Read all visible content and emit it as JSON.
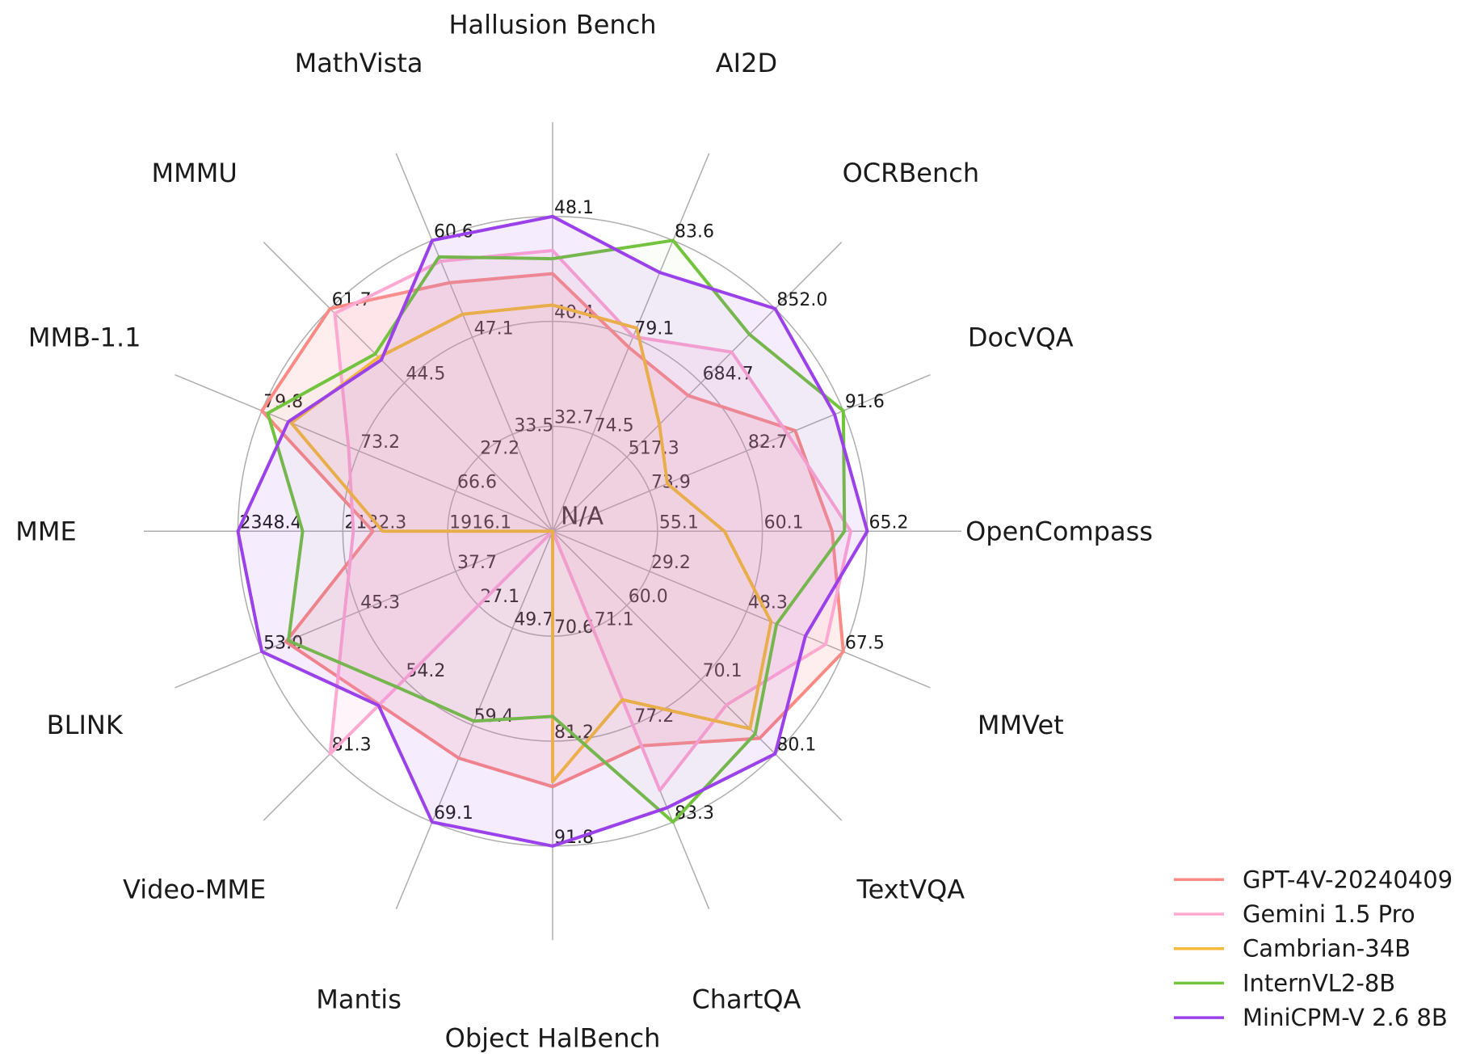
{
  "chart_data": {
    "type": "radar",
    "center_label": "N/A",
    "grid_color": "#ADADAD",
    "text_color": "#1a1a1a",
    "rings": 3,
    "axes": [
      {
        "name": "Hallusion Bench",
        "min": 25.0,
        "max": 48.1,
        "ticks": [
          "32.7",
          "40.4",
          "48.1"
        ]
      },
      {
        "name": "AI2D",
        "min": 70.0,
        "max": 83.6,
        "ticks": [
          "74.5",
          "79.1",
          "83.6"
        ]
      },
      {
        "name": "OCRBench",
        "min": 350.0,
        "max": 852.0,
        "ticks": [
          "517.3",
          "684.7",
          "852.0"
        ]
      },
      {
        "name": "DocVQA",
        "min": 65.0,
        "max": 91.6,
        "ticks": [
          "73.9",
          "82.7",
          "91.6"
        ]
      },
      {
        "name": "OpenCompass",
        "min": 50.0,
        "max": 65.2,
        "ticks": [
          "55.1",
          "60.1",
          "65.2"
        ]
      },
      {
        "name": "MMVet",
        "min": 10.0,
        "max": 67.5,
        "ticks": [
          "29.2",
          "48.3",
          "67.5"
        ]
      },
      {
        "name": "TextVQA",
        "min": 50.0,
        "max": 80.1,
        "ticks": [
          "60.0",
          "70.1",
          "80.1"
        ]
      },
      {
        "name": "ChartQA",
        "min": 65.0,
        "max": 83.3,
        "ticks": [
          "71.1",
          "77.2",
          "83.3"
        ]
      },
      {
        "name": "Object HalBench",
        "min": 60.0,
        "max": 91.8,
        "ticks": [
          "70.6",
          "81.2",
          "91.8"
        ]
      },
      {
        "name": "Mantis",
        "min": 40.0,
        "max": 69.1,
        "ticks": [
          "49.7",
          "59.4",
          "69.1"
        ]
      },
      {
        "name": "Video-MME",
        "min": 0.0,
        "max": 81.3,
        "ticks": [
          "27.1",
          "54.2",
          "81.3"
        ]
      },
      {
        "name": "BLINK",
        "min": 30.0,
        "max": 53.0,
        "ticks": [
          "37.7",
          "45.3",
          "53.0"
        ]
      },
      {
        "name": "MME",
        "min": 1700.0,
        "max": 2348.4,
        "ticks": [
          "1916.1",
          "2132.3",
          "2348.4"
        ]
      },
      {
        "name": "MMB-1.1",
        "min": 60.0,
        "max": 79.8,
        "ticks": [
          "66.6",
          "73.2",
          "79.8"
        ]
      },
      {
        "name": "MMMU",
        "min": 10.0,
        "max": 61.7,
        "ticks": [
          "27.2",
          "44.5",
          "61.7"
        ]
      },
      {
        "name": "MathVista",
        "min": 20.0,
        "max": 60.6,
        "ticks": [
          "33.5",
          "47.1",
          "60.6"
        ]
      }
    ],
    "series": [
      {
        "name": "GPT-4V-20240409",
        "color": "#FA8A84",
        "fill_alpha": 0.14,
        "values": [
          43.9,
          78.6,
          656.0,
          87.2,
          63.5,
          67.5,
          78.0,
          78.5,
          85.8,
          62.7,
          63.3,
          51.1,
          2070.2,
          79.8,
          61.7,
          54.7
        ]
      },
      {
        "name": "Gemini 1.5 Pro",
        "color": "#FFA8D2",
        "fill_alpha": 0.13,
        "values": [
          45.6,
          79.1,
          754.0,
          86.5,
          64.4,
          64.0,
          73.5,
          81.3,
          null,
          null,
          81.3,
          46.5,
          2110.6,
          73.9,
          60.6,
          57.7
        ]
      },
      {
        "name": "Cambrian-34B",
        "color": "#F6BA3A",
        "fill_alpha": 0.03,
        "values": [
          41.6,
          79.5,
          591.0,
          75.5,
          58.3,
          53.2,
          76.7,
          75.6,
          85.3,
          null,
          null,
          null,
          2049.9,
          77.8,
          50.4,
          50.3
        ]
      },
      {
        "name": "InternVL2-8B",
        "color": "#72C33D",
        "fill_alpha": 0.03,
        "values": [
          45.0,
          83.6,
          794.0,
          91.6,
          64.1,
          54.3,
          77.4,
          83.3,
          78.7,
          59.0,
          56.9,
          50.9,
          2215.1,
          79.4,
          51.2,
          58.3
        ]
      },
      {
        "name": "MiniCPM-V 2.6 8B",
        "color": "#9B41E9",
        "fill_alpha": 0.1,
        "values": [
          48.1,
          82.1,
          852.0,
          90.8,
          65.2,
          60.0,
          80.1,
          82.4,
          91.8,
          69.1,
          63.6,
          53.0,
          2348.4,
          78.0,
          49.8,
          60.6
        ]
      }
    ]
  }
}
